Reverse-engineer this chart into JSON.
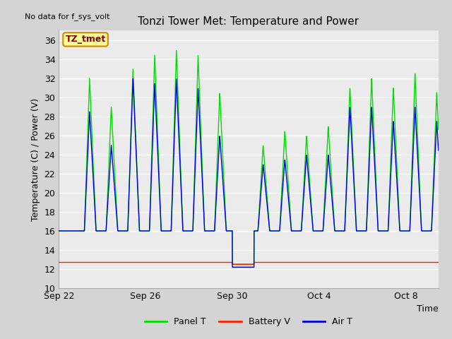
{
  "title": "Tonzi Tower Met: Temperature and Power",
  "no_data_label": "No data for f_sys_volt",
  "annotation_label": "TZ_tmet",
  "ylabel": "Temperature (C) / Power (V)",
  "xlabel": "Time",
  "ylim": [
    10,
    37
  ],
  "yticks": [
    10,
    12,
    14,
    16,
    18,
    20,
    22,
    24,
    26,
    28,
    30,
    32,
    34,
    36
  ],
  "xtick_days": [
    0,
    4,
    8,
    12,
    16
  ],
  "xtick_labels": [
    "Sep 22",
    "Sep 26",
    "Sep 30",
    "Oct 4",
    "Oct 8"
  ],
  "xlim": [
    0,
    17.5
  ],
  "panel_color": "#00dd00",
  "battery_color": "#ff2000",
  "air_color": "#0000dd",
  "fig_bg": "#d4d4d4",
  "ax_bg": "#ebebeb",
  "grid_color": "#ffffff",
  "panel_peaks": [
    16,
    32,
    29,
    33,
    34.5,
    35,
    34.5,
    30.5,
    25.5,
    25,
    26.5,
    26,
    27,
    31,
    32,
    31,
    32.5,
    30.5,
    30
  ],
  "air_peaks": [
    16,
    28.5,
    25,
    32,
    31.5,
    32,
    31,
    26,
    23,
    23,
    23.5,
    24,
    24,
    29,
    29,
    27.5,
    29,
    27.5,
    27
  ],
  "night_base": 16,
  "dip_night_base": 12.5,
  "battery_base": 12.7,
  "battery_peak": 15.2,
  "dip_day": 8,
  "dip_panel": 10.5,
  "dip_air": 11.0
}
